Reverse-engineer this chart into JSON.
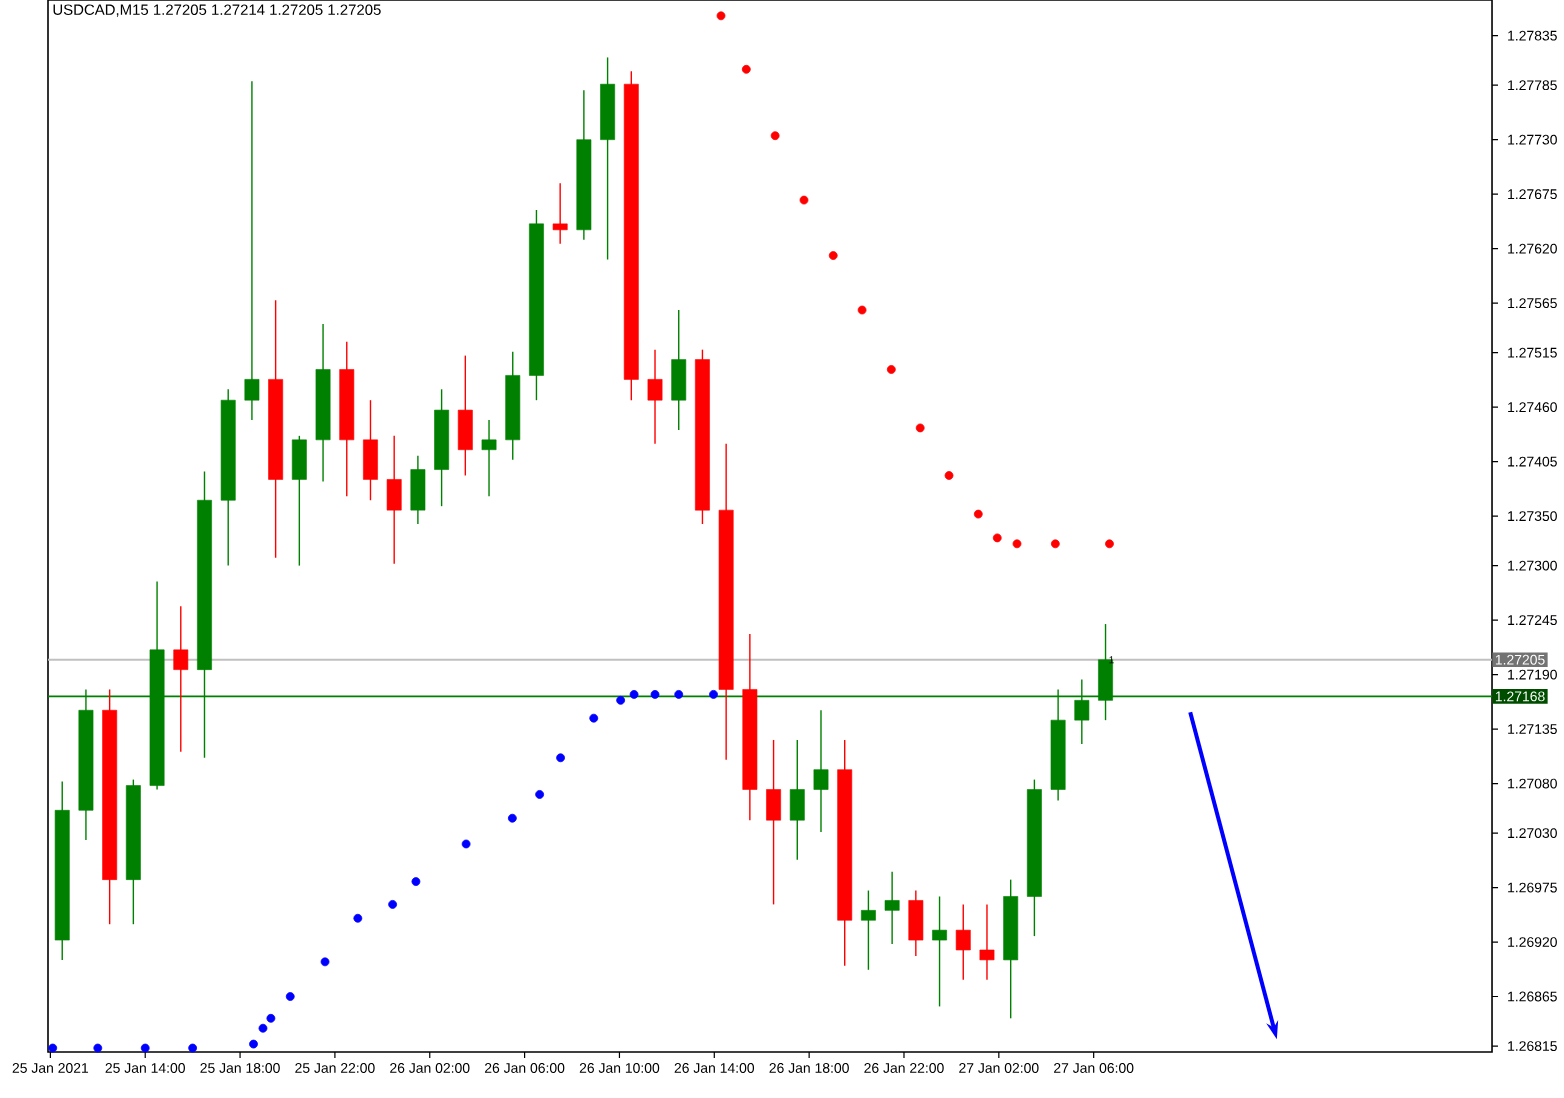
{
  "chart_data": {
    "type": "candlestick",
    "title": "USDCAD,M15  1.27205 1.27214 1.27205 1.27205",
    "x": [
      "2021-01-25T10:30",
      "2021-01-25T11:30",
      "2021-01-25T12:30",
      "2021-01-25T13:30",
      "2021-01-25T14:30",
      "2021-01-25T15:30",
      "2021-01-25T16:30",
      "2021-01-25T17:30",
      "2021-01-25T18:30",
      "2021-01-25T19:30",
      "2021-01-25T20:30",
      "2021-01-25T21:30",
      "2021-01-25T22:30",
      "2021-01-25T23:30",
      "2021-01-26T00:30",
      "2021-01-26T01:30",
      "2021-01-26T02:30",
      "2021-01-26T03:30",
      "2021-01-26T04:30",
      "2021-01-26T05:30",
      "2021-01-26T06:30",
      "2021-01-26T07:30",
      "2021-01-26T08:30",
      "2021-01-26T09:30",
      "2021-01-26T10:30",
      "2021-01-26T11:30",
      "2021-01-26T12:30",
      "2021-01-26T13:30",
      "2021-01-26T14:30",
      "2021-01-26T15:30",
      "2021-01-26T16:30",
      "2021-01-26T17:30",
      "2021-01-26T18:30",
      "2021-01-26T19:30",
      "2021-01-26T20:30",
      "2021-01-26T21:30",
      "2021-01-26T22:30",
      "2021-01-26T23:30",
      "2021-01-27T00:30",
      "2021-01-27T01:30",
      "2021-01-27T02:30",
      "2021-01-27T03:30",
      "2021-01-27T04:30",
      "2021-01-27T05:30",
      "2021-01-27T06:30"
    ],
    "ohlc": [
      [
        1.26922,
        1.27082,
        1.26902,
        1.27053
      ],
      [
        1.27053,
        1.27175,
        1.27023,
        1.27154
      ],
      [
        1.27154,
        1.27175,
        1.26938,
        1.26983
      ],
      [
        1.26983,
        1.27084,
        1.26938,
        1.27078
      ],
      [
        1.27078,
        1.27284,
        1.27074,
        1.27215
      ],
      [
        1.27215,
        1.27259,
        1.27112,
        1.27195
      ],
      [
        1.27195,
        1.27395,
        1.27106,
        1.27366
      ],
      [
        1.27366,
        1.27478,
        1.273,
        1.27467
      ],
      [
        1.27467,
        1.27789,
        1.27447,
        1.27488
      ],
      [
        1.27488,
        1.27568,
        1.27308,
        1.27387
      ],
      [
        1.27387,
        1.27431,
        1.273,
        1.27427
      ],
      [
        1.27427,
        1.27544,
        1.27385,
        1.27498
      ],
      [
        1.27498,
        1.27526,
        1.2737,
        1.27427
      ],
      [
        1.27427,
        1.27467,
        1.27366,
        1.27387
      ],
      [
        1.27387,
        1.27431,
        1.27302,
        1.27356
      ],
      [
        1.27356,
        1.27411,
        1.27342,
        1.27397
      ],
      [
        1.27397,
        1.27478,
        1.2736,
        1.27457
      ],
      [
        1.27457,
        1.27512,
        1.27391,
        1.27417
      ],
      [
        1.27417,
        1.27447,
        1.2737,
        1.27427
      ],
      [
        1.27427,
        1.27516,
        1.27407,
        1.27492
      ],
      [
        1.27492,
        1.27659,
        1.27467,
        1.27645
      ],
      [
        1.27645,
        1.27686,
        1.27625,
        1.27639
      ],
      [
        1.27639,
        1.2778,
        1.27629,
        1.2773
      ],
      [
        1.2773,
        1.27813,
        1.27609,
        1.27786
      ],
      [
        1.27786,
        1.27799,
        1.27467,
        1.27488
      ],
      [
        1.27488,
        1.27518,
        1.27423,
        1.27467
      ],
      [
        1.27467,
        1.27558,
        1.27437,
        1.27508
      ],
      [
        1.27508,
        1.27518,
        1.27342,
        1.27356
      ],
      [
        1.27356,
        1.27423,
        1.27104,
        1.27175
      ],
      [
        1.27175,
        1.27231,
        1.27043,
        1.27074
      ],
      [
        1.27074,
        1.27124,
        1.26958,
        1.27043
      ],
      [
        1.27043,
        1.27124,
        1.27003,
        1.27074
      ],
      [
        1.27074,
        1.27154,
        1.27031,
        1.27094
      ],
      [
        1.27094,
        1.27124,
        1.26896,
        1.26942
      ],
      [
        1.26942,
        1.26972,
        1.26892,
        1.26952
      ],
      [
        1.26952,
        1.26991,
        1.26918,
        1.26962
      ],
      [
        1.26962,
        1.26972,
        1.26906,
        1.26922
      ],
      [
        1.26922,
        1.26966,
        1.26855,
        1.26932
      ],
      [
        1.26932,
        1.26958,
        1.26882,
        1.26912
      ],
      [
        1.26912,
        1.26958,
        1.26882,
        1.26902
      ],
      [
        1.26902,
        1.26983,
        1.26843,
        1.26966
      ],
      [
        1.26966,
        1.27084,
        1.26926,
        1.27074
      ],
      [
        1.27074,
        1.27175,
        1.27063,
        1.27144
      ],
      [
        1.27144,
        1.27185,
        1.2712,
        1.27164
      ],
      [
        1.27164,
        1.27241,
        1.27144,
        1.27205
      ]
    ],
    "colors": [
      "#008000",
      "#008000",
      "#ff0000",
      "#008000",
      "#008000",
      "#ff0000",
      "#008000",
      "#008000",
      "#008000",
      "#ff0000",
      "#008000",
      "#008000",
      "#ff0000",
      "#ff0000",
      "#ff0000",
      "#008000",
      "#008000",
      "#ff0000",
      "#008000",
      "#008000",
      "#008000",
      "#ff0000",
      "#008000",
      "#008000",
      "#ff0000",
      "#ff0000",
      "#008000",
      "#ff0000",
      "#ff0000",
      "#ff0000",
      "#ff0000",
      "#008000",
      "#008000",
      "#ff0000",
      "#008000",
      "#008000",
      "#ff0000",
      "#008000",
      "#ff0000",
      "#ff0000",
      "#008000",
      "#008000",
      "#008000",
      "#008000",
      "#008000"
    ],
    "series": [
      {
        "type": "scatter",
        "color": "#ff0000",
        "x": [
          "2021-01-26T14:17",
          "2021-01-26T15:21",
          "2021-01-26T16:34",
          "2021-01-26T17:47",
          "2021-01-26T19:01",
          "2021-01-26T20:14",
          "2021-01-26T21:28",
          "2021-01-26T22:41",
          "2021-01-26T23:54",
          "2021-01-27T01:08",
          "2021-01-27T01:56",
          "2021-01-27T02:46",
          "2021-01-27T04:23",
          "2021-01-27T06:40"
        ],
        "values": [
          1.27855,
          1.27801,
          1.27734,
          1.27669,
          1.27613,
          1.27558,
          1.27498,
          1.27439,
          1.27391,
          1.27352,
          1.27328,
          1.27322,
          1.27322,
          1.27322
        ]
      },
      {
        "type": "scatter",
        "color": "#0000ff",
        "x": [
          "2021-01-25T10:06",
          "2021-01-25T12:00",
          "2021-01-25T14:00",
          "2021-01-25T16:00",
          "2021-01-25T18:34",
          "2021-01-25T18:58",
          "2021-01-25T19:18",
          "2021-01-25T20:07",
          "2021-01-25T21:35",
          "2021-01-25T22:58",
          "2021-01-26T00:26",
          "2021-01-26T01:25",
          "2021-01-26T03:32",
          "2021-01-26T05:29",
          "2021-01-26T06:38",
          "2021-01-26T07:31",
          "2021-01-26T08:55",
          "2021-01-26T10:03",
          "2021-01-26T10:37",
          "2021-01-26T11:30",
          "2021-01-26T12:30",
          "2021-01-26T13:58"
        ],
        "values": [
          1.26813,
          1.26813,
          1.26813,
          1.26813,
          1.26817,
          1.26833,
          1.26843,
          1.26865,
          1.269,
          1.26944,
          1.26958,
          1.26981,
          1.27019,
          1.27045,
          1.27069,
          1.27106,
          1.27146,
          1.27164,
          1.2717,
          1.2717,
          1.2717,
          1.2717
        ]
      }
    ],
    "marker": "circle",
    "xlim": [
      "2021-01-25T09:54",
      "2021-01-27T22:48"
    ],
    "ylim": [
      1.26809,
      1.27871
    ],
    "xticks": [
      {
        "value": "2021-01-25T10:00",
        "label": "25 Jan 2021"
      },
      {
        "value": "2021-01-25T14:00",
        "label": "25 Jan 14:00"
      },
      {
        "value": "2021-01-25T18:00",
        "label": "25 Jan 18:00"
      },
      {
        "value": "2021-01-25T22:00",
        "label": "25 Jan 22:00"
      },
      {
        "value": "2021-01-26T02:00",
        "label": "26 Jan 02:00"
      },
      {
        "value": "2021-01-26T06:00",
        "label": "26 Jan 06:00"
      },
      {
        "value": "2021-01-26T10:00",
        "label": "26 Jan 10:00"
      },
      {
        "value": "2021-01-26T14:00",
        "label": "26 Jan 14:00"
      },
      {
        "value": "2021-01-26T18:00",
        "label": "26 Jan 18:00"
      },
      {
        "value": "2021-01-26T22:00",
        "label": "26 Jan 22:00"
      },
      {
        "value": "2021-01-27T02:00",
        "label": "27 Jan 02:00"
      },
      {
        "value": "2021-01-27T06:00",
        "label": "27 Jan 06:00"
      }
    ],
    "yticks": [
      1.26815,
      1.26865,
      {
        "value": 1.2692,
        "label": "1.26920"
      },
      1.26975,
      {
        "value": 1.2703,
        "label": "1.27030"
      },
      {
        "value": 1.2708,
        "label": "1.27080"
      },
      1.27135,
      {
        "value": 1.2719,
        "label": "1.27190"
      },
      1.27245,
      {
        "value": 1.273,
        "label": "1.27300"
      },
      {
        "value": 1.2735,
        "label": "1.27350"
      },
      1.27405,
      {
        "value": 1.2746,
        "label": "1.27460"
      },
      1.27515,
      1.27565,
      {
        "value": 1.2762,
        "label": "1.27620"
      },
      1.27675,
      {
        "value": 1.2773,
        "label": "1.27730"
      },
      1.27785,
      1.27835
    ],
    "ref_lines": [
      {
        "axis": "y",
        "value": 1.27205,
        "label": "1.27205",
        "color": "#c0c0c0"
      },
      {
        "axis": "y",
        "value": 1.27168,
        "label": "1.27168",
        "color": "#008000"
      }
    ],
    "annotations": [
      {
        "text": "1",
        "x": "2021-01-27T06:45",
        "y": 1.27205
      }
    ]
  }
}
